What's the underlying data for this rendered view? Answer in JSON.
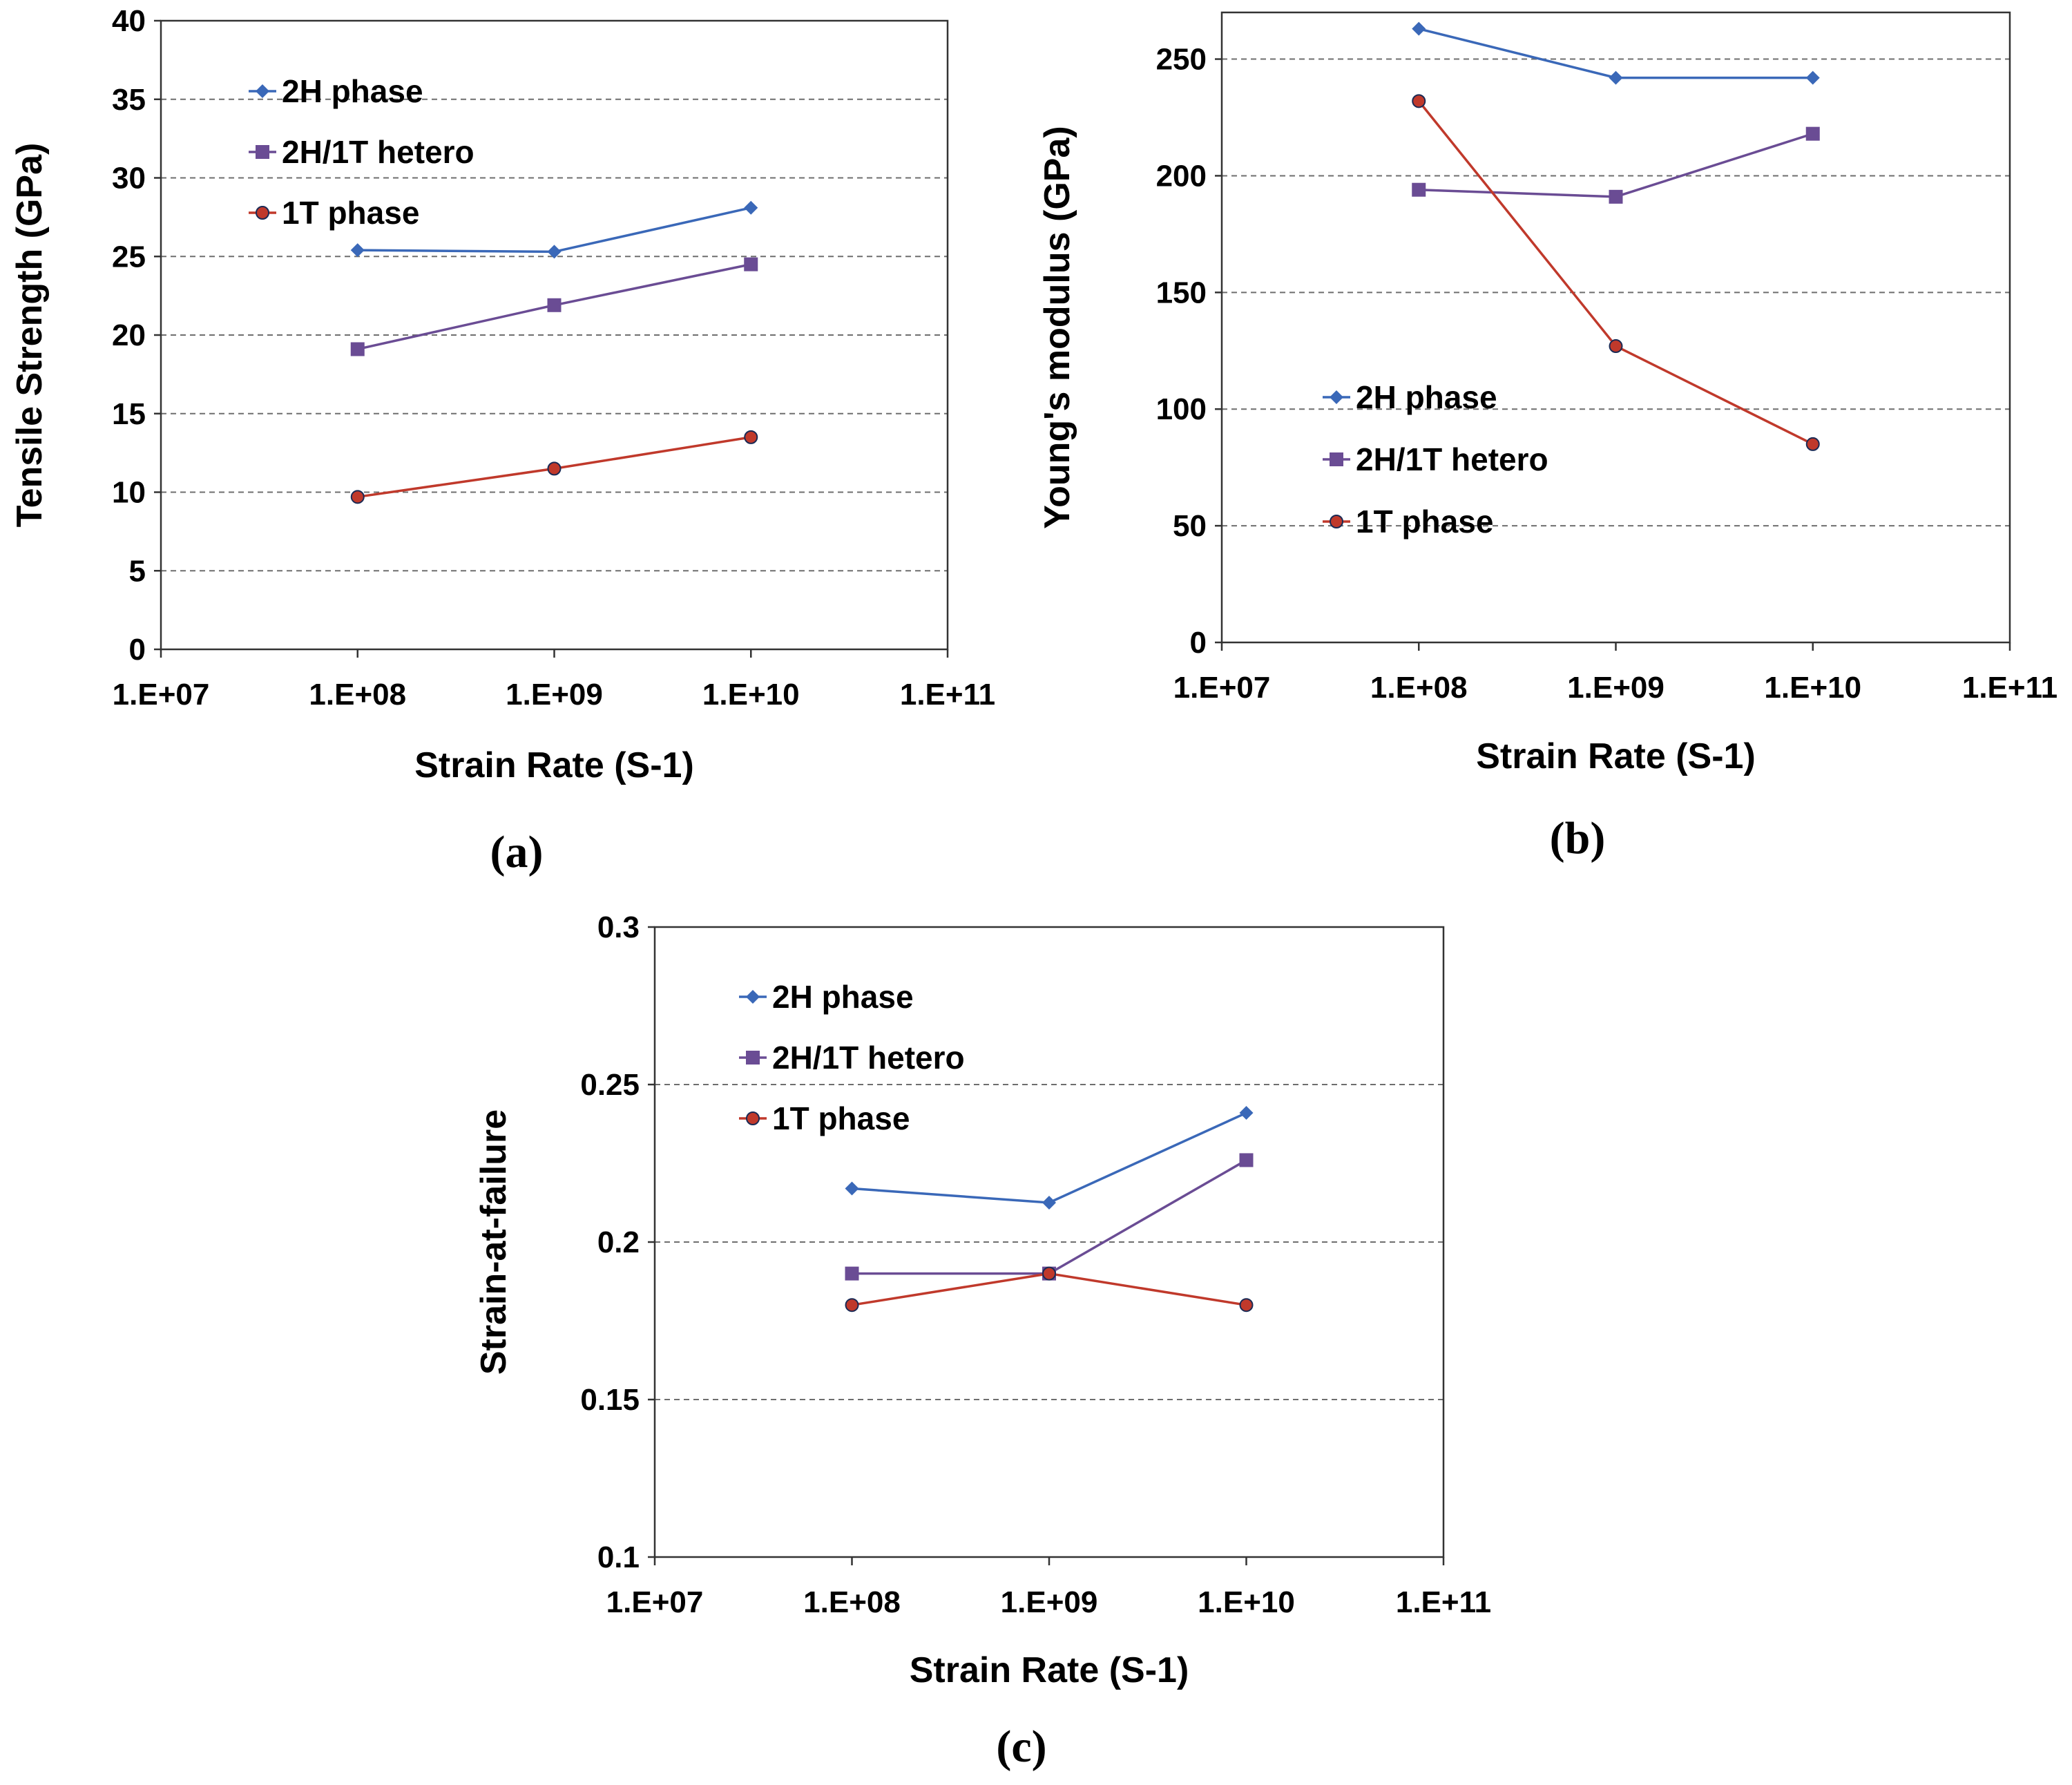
{
  "chart_data": [
    {
      "type": "line",
      "panel_label": "(a)",
      "title": "",
      "xlabel": "Strain Rate (S-1)",
      "ylabel": "Tensile Strength (GPa)",
      "x_scale": "log",
      "xlim": [
        10000000,
        100000000000
      ],
      "ylim": [
        0,
        40
      ],
      "x_ticks": [
        10000000,
        100000000,
        1000000000,
        10000000000,
        100000000000
      ],
      "x_tick_labels": [
        "1.E+07",
        "1.E+08",
        "1.E+09",
        "1.E+10",
        "1.E+11"
      ],
      "y_ticks": [
        0,
        5,
        10,
        15,
        20,
        25,
        30,
        35,
        40
      ],
      "y_tick_labels": [
        "0",
        "5",
        "10",
        "15",
        "20",
        "25",
        "30",
        "35",
        "40"
      ],
      "grid": "horizontal-dashed",
      "legend_position": "top-left",
      "x": [
        100000000,
        1000000000,
        10000000000
      ],
      "series": [
        {
          "name": "2H phase",
          "values": [
            25.4,
            25.3,
            28.1
          ],
          "color": "#3a68b8",
          "marker": "diamond"
        },
        {
          "name": "2H/1T hetero",
          "values": [
            19.1,
            21.9,
            24.5
          ],
          "color": "#6a4c94",
          "marker": "square"
        },
        {
          "name": "1T phase",
          "values": [
            9.7,
            11.5,
            13.5
          ],
          "color": "#c0392b",
          "marker": "circle"
        }
      ]
    },
    {
      "type": "line",
      "panel_label": "(b)",
      "title": "",
      "xlabel": "Strain Rate (S-1)",
      "ylabel": "Young's modulus (GPa)",
      "x_scale": "log",
      "xlim": [
        10000000,
        100000000000
      ],
      "ylim": [
        0,
        270
      ],
      "x_ticks": [
        10000000,
        100000000,
        1000000000,
        10000000000,
        100000000000
      ],
      "x_tick_labels": [
        "1.E+07",
        "1.E+08",
        "1.E+09",
        "1.E+10",
        "1.E+11"
      ],
      "y_ticks": [
        0,
        50,
        100,
        150,
        200,
        250
      ],
      "y_tick_labels": [
        "0",
        "50",
        "100",
        "150",
        "200",
        "250"
      ],
      "grid": "horizontal-dashed",
      "legend_position": "middle-left",
      "x": [
        100000000,
        1000000000,
        10000000000
      ],
      "series": [
        {
          "name": "2H phase",
          "values": [
            263,
            242,
            242
          ],
          "color": "#3a68b8",
          "marker": "diamond"
        },
        {
          "name": "2H/1T hetero",
          "values": [
            194,
            191,
            218
          ],
          "color": "#6a4c94",
          "marker": "square"
        },
        {
          "name": "1T phase",
          "values": [
            232,
            127,
            85
          ],
          "color": "#c0392b",
          "marker": "circle"
        }
      ]
    },
    {
      "type": "line",
      "panel_label": "(c)",
      "title": "",
      "xlabel": "Strain Rate (S-1)",
      "ylabel": "Strain-at-failure",
      "x_scale": "log",
      "xlim": [
        10000000,
        100000000000
      ],
      "ylim": [
        0.1,
        0.3
      ],
      "x_ticks": [
        10000000,
        100000000,
        1000000000,
        10000000000,
        100000000000
      ],
      "x_tick_labels": [
        "1.E+07",
        "1.E+08",
        "1.E+09",
        "1.E+10",
        "1.E+11"
      ],
      "y_ticks": [
        0.1,
        0.15,
        0.2,
        0.25,
        0.3
      ],
      "y_tick_labels": [
        "0.1",
        "0.15",
        "0.2",
        "0.25",
        "0.3"
      ],
      "grid": "horizontal-dashed",
      "legend_position": "top-left",
      "x": [
        100000000,
        1000000000,
        10000000000
      ],
      "series": [
        {
          "name": "2H phase",
          "values": [
            0.217,
            0.2125,
            0.241
          ],
          "color": "#3a68b8",
          "marker": "diamond"
        },
        {
          "name": "2H/1T hetero",
          "values": [
            0.19,
            0.19,
            0.226
          ],
          "color": "#6a4c94",
          "marker": "square"
        },
        {
          "name": "1T phase",
          "values": [
            0.18,
            0.19,
            0.18
          ],
          "color": "#c0392b",
          "marker": "circle"
        }
      ]
    }
  ]
}
